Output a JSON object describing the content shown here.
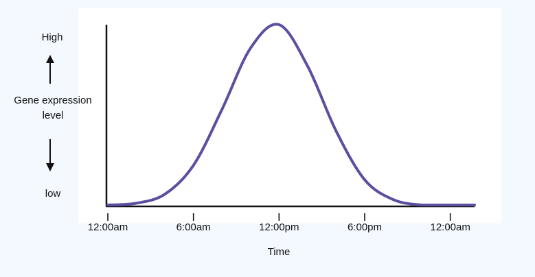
{
  "chart_data": {
    "type": "line",
    "ylabel": "Gene expression level",
    "ylabel_high": "High",
    "ylabel_low": "low",
    "xlabel": "Time",
    "x_ticks": [
      "12:00am",
      "6:00am",
      "12:00pm",
      "6:00pm",
      "12:00am"
    ],
    "x_hours": [
      0,
      6,
      12,
      18,
      24
    ],
    "series": [
      {
        "color": "#5a4fa0",
        "x": [
          0,
          2,
          4,
          6,
          8,
          10,
          12,
          14,
          16,
          18,
          20,
          22,
          24
        ],
        "y": [
          0.0,
          0.01,
          0.06,
          0.22,
          0.53,
          0.87,
          1.0,
          0.77,
          0.41,
          0.14,
          0.03,
          0.0,
          0.0
        ]
      }
    ],
    "xlim": [
      0,
      25.7
    ],
    "ylim": [
      0,
      1
    ],
    "grid": false
  }
}
